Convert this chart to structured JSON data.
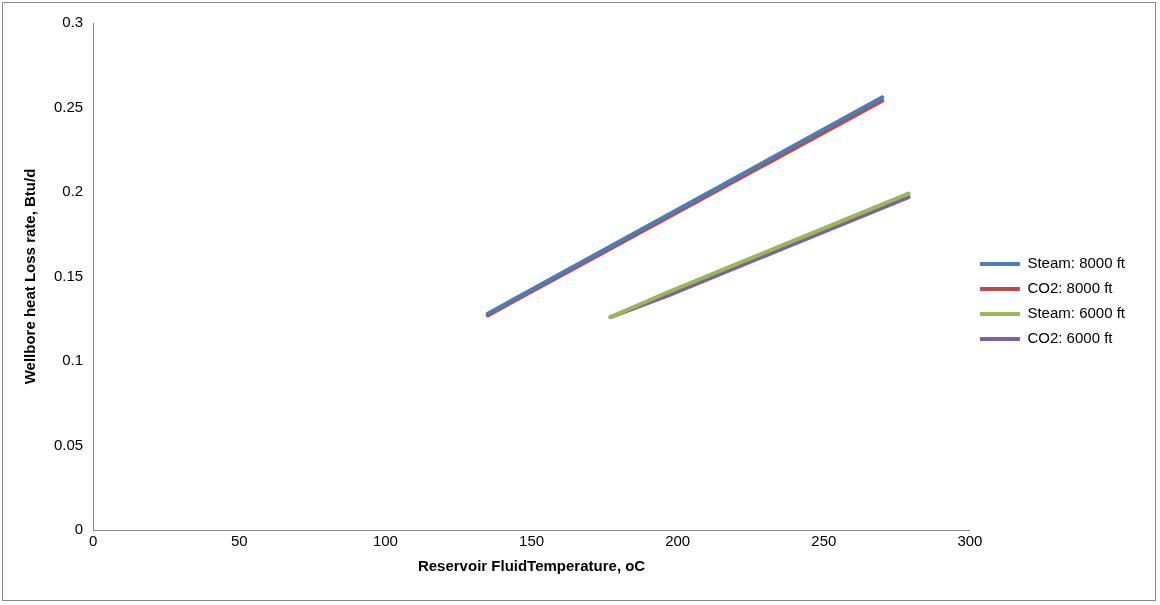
{
  "chart_data": {
    "type": "line",
    "xlabel": "Reservoir FluidTemperature, oC",
    "ylabel": "Wellbore heat Loss rate, Btu/d",
    "xlim": [
      0,
      300
    ],
    "xticks": [
      0,
      50,
      100,
      150,
      200,
      250,
      300
    ],
    "ylim": [
      0,
      0.3
    ],
    "yticks": [
      0,
      0.05,
      0.1,
      0.15,
      0.2,
      0.25,
      0.3
    ],
    "grid": false,
    "legend": "right",
    "marker": "none",
    "line_style": "solid",
    "series": [
      {
        "name": "Steam: 8000 ft",
        "color": "#4a7ebb",
        "x": [
          135,
          270
        ],
        "values": [
          0.128,
          0.256
        ]
      },
      {
        "name": "CO2: 8000 ft",
        "color": "#be4b48",
        "x": [
          135,
          270
        ],
        "values": [
          0.127,
          0.254
        ]
      },
      {
        "name": "Steam: 6000 ft",
        "color": "#98b954",
        "x": [
          177,
          197,
          279
        ],
        "values": [
          0.126,
          0.141,
          0.199
        ]
      },
      {
        "name": "CO2: 6000 ft",
        "color": "#7d60a0",
        "x": [
          177,
          197,
          279
        ],
        "values": [
          0.126,
          0.139,
          0.197
        ]
      }
    ]
  }
}
